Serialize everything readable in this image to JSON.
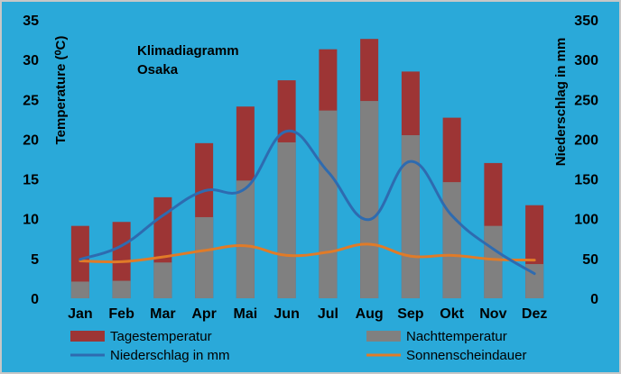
{
  "chart_data": {
    "type": "bar",
    "title_lines": [
      "Klimadiagramm",
      "Osaka"
    ],
    "categories": [
      "Jan",
      "Feb",
      "Mar",
      "Apr",
      "Mai",
      "Jun",
      "Jul",
      "Aug",
      "Sep",
      "Okt",
      "Nov",
      "Dez"
    ],
    "ylabel_left": "Temperature (⁰C)",
    "ylabel_right": "Niederschlag in mm",
    "ylim_left": [
      0,
      35
    ],
    "ylim_right": [
      0,
      350
    ],
    "yticks_left": [
      "0",
      "5",
      "10",
      "15",
      "20",
      "25",
      "30",
      "35"
    ],
    "yticks_right": [
      "0",
      "50",
      "100",
      "150",
      "200",
      "250",
      "300",
      "350"
    ],
    "grid": false,
    "legend_position": "bottom",
    "series": [
      {
        "name": "Tagestemperatur",
        "kind": "bar",
        "axis": "left",
        "color": "#9d3535",
        "values": [
          9.1,
          9.6,
          12.7,
          19.5,
          24.1,
          27.4,
          31.3,
          32.6,
          28.5,
          22.7,
          17.0,
          11.7
        ]
      },
      {
        "name": "Nachttemperatur",
        "kind": "bar",
        "axis": "left",
        "color": "#808080",
        "values": [
          2.1,
          2.2,
          4.5,
          10.2,
          14.8,
          19.6,
          23.6,
          24.8,
          20.5,
          14.6,
          9.1,
          4.3
        ]
      },
      {
        "name": "Niederschlag in mm",
        "kind": "line",
        "axis": "right",
        "color": "#2e6bb0",
        "values": [
          49,
          66,
          104,
          135,
          138,
          210,
          159,
          99,
          172,
          104,
          62,
          31
        ]
      },
      {
        "name": "Sonnenscheindauer",
        "kind": "line",
        "axis": "right",
        "color": "#e07b28",
        "values": [
          47,
          46,
          52,
          60,
          66,
          54,
          58,
          68,
          53,
          54,
          49,
          48
        ]
      }
    ]
  }
}
